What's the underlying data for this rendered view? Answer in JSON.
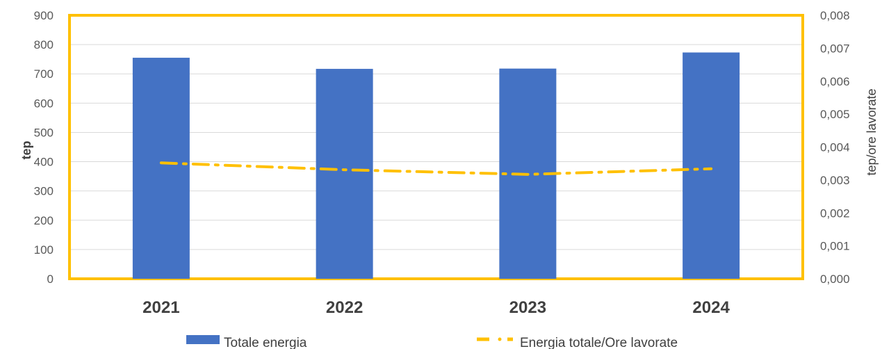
{
  "chart_data": {
    "type": "bar",
    "categories": [
      "2021",
      "2022",
      "2023",
      "2024"
    ],
    "series": [
      {
        "name": "Totale energia",
        "type": "bar",
        "axis": "left",
        "values": [
          755,
          717,
          718,
          773
        ],
        "color": "#4472C4"
      },
      {
        "name": "Energia totale/Ore lavorate",
        "type": "line",
        "line_style": "dash-dot",
        "axis": "right",
        "values": [
          0.00352,
          0.00331,
          0.00317,
          0.00334
        ],
        "color": "#FFC000"
      }
    ],
    "xlabel": "",
    "ylabel": "tep",
    "y2label": "tep/ore lavorate",
    "ylim": [
      0,
      900
    ],
    "y2lim": [
      0,
      0.008
    ],
    "yticks": [
      "0",
      "100",
      "200",
      "300",
      "400",
      "500",
      "600",
      "700",
      "800",
      "900"
    ],
    "y2ticks": [
      "0,000",
      "0,001",
      "0,002",
      "0,003",
      "0,004",
      "0,005",
      "0,006",
      "0,007",
      "0,008"
    ],
    "grid": true,
    "legend": "bottom",
    "plot_border_color": "#FFC000"
  }
}
